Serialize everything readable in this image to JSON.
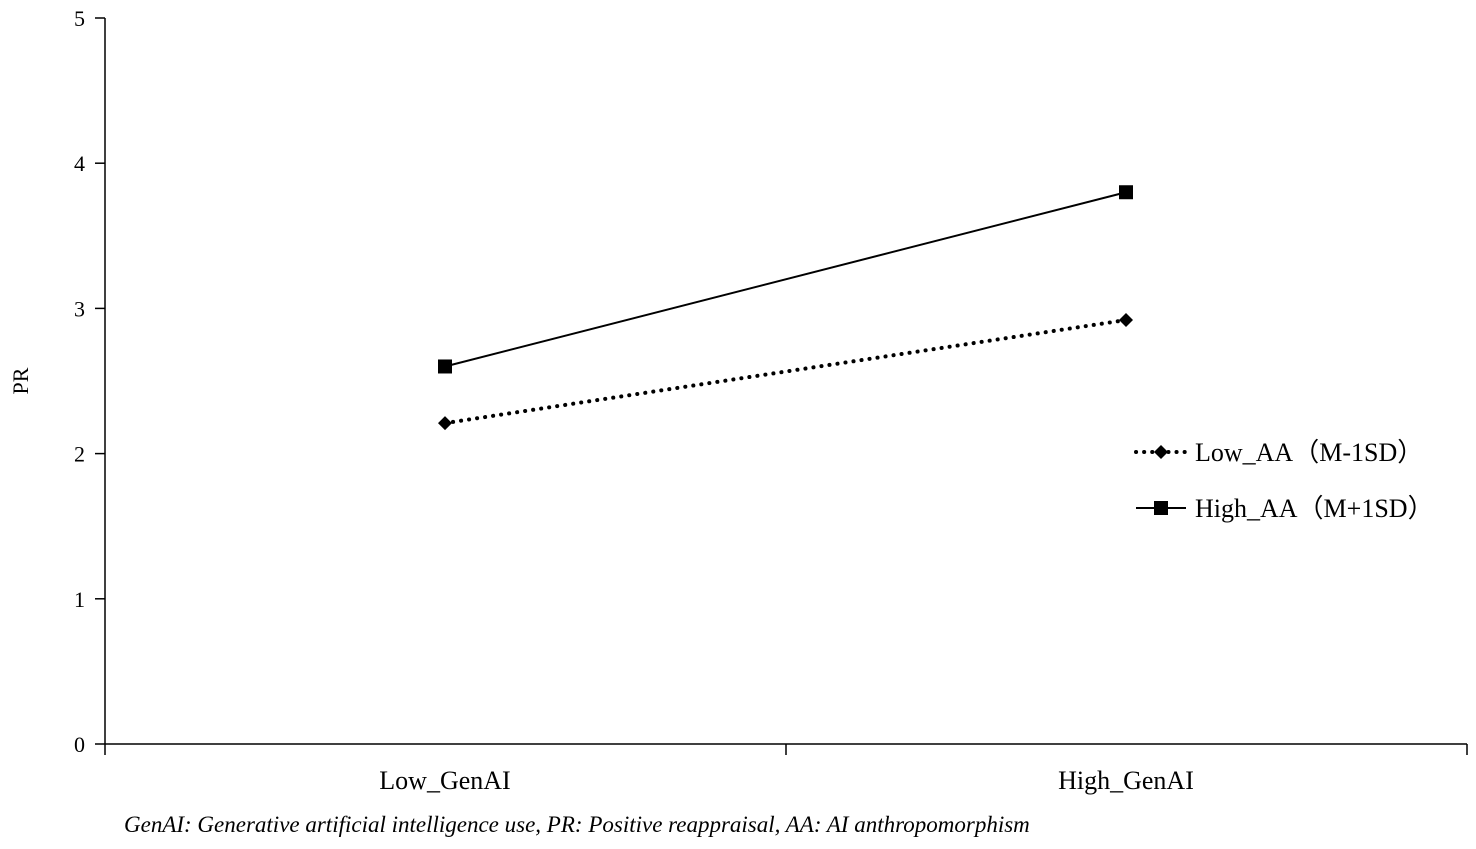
{
  "chart_data": {
    "type": "line",
    "categories": [
      "Low_GenAI",
      "High_GenAI"
    ],
    "series": [
      {
        "name": "Low_AA（M-1SD）",
        "values": [
          2.21,
          2.92
        ],
        "line_style": "dotted",
        "marker": "diamond",
        "color": "#000000"
      },
      {
        "name": "High_AA（M+1SD）",
        "values": [
          2.6,
          3.8
        ],
        "line_style": "solid",
        "marker": "square",
        "color": "#000000"
      }
    ],
    "title": "",
    "xlabel": "",
    "ylabel": "PR",
    "ylim": [
      0,
      5
    ],
    "yticks": [
      0,
      1,
      2,
      3,
      4,
      5
    ],
    "grid": false,
    "legend_position": "right"
  },
  "note": "GenAI:  Generative artificial intelligence use, PR: Positive reappraisal, AA: AI anthropomorphism"
}
